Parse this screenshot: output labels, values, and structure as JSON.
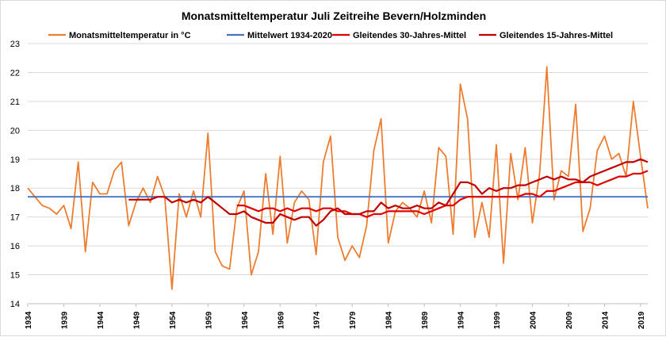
{
  "chart_data": {
    "type": "line",
    "title": "Monatsmitteltemperatur Juli Zeitreihe Bevern/Holzminden",
    "xlabel": "",
    "ylabel": "",
    "ylim": [
      14,
      23
    ],
    "yticks": [
      14,
      15,
      16,
      17,
      18,
      19,
      20,
      21,
      22,
      23
    ],
    "xlim": [
      1934,
      2020
    ],
    "xticks": [
      1934,
      1939,
      1944,
      1949,
      1954,
      1959,
      1964,
      1969,
      1974,
      1979,
      1984,
      1989,
      1994,
      1999,
      2004,
      2009,
      2014,
      2019
    ],
    "legend_position": "top",
    "series": [
      {
        "name": "Monatsmitteltemperatur in °C",
        "color": "#ED7D31",
        "width": 1.8,
        "start": 1934,
        "values": [
          18.0,
          17.7,
          17.4,
          17.3,
          17.1,
          17.4,
          16.6,
          18.9,
          15.8,
          18.2,
          17.8,
          17.8,
          18.6,
          18.9,
          16.7,
          17.5,
          18.0,
          17.5,
          18.4,
          17.7,
          14.5,
          17.8,
          17.0,
          17.9,
          17.0,
          19.9,
          15.8,
          15.3,
          15.2,
          17.3,
          17.9,
          15.0,
          15.8,
          18.5,
          16.4,
          19.1,
          16.1,
          17.5,
          17.9,
          17.6,
          15.7,
          18.9,
          19.8,
          16.3,
          15.5,
          16.0,
          15.6,
          16.7,
          19.3,
          20.4,
          16.1,
          17.2,
          17.5,
          17.3,
          17.0,
          17.9,
          16.8,
          19.4,
          19.1,
          16.4,
          21.6,
          20.4,
          16.3,
          17.5,
          16.3,
          19.5,
          15.4,
          19.2,
          17.6,
          19.4,
          16.8,
          18.5,
          22.2,
          17.6,
          18.6,
          18.4,
          20.9,
          16.5,
          17.3,
          19.3,
          19.8,
          19.0,
          19.2,
          18.4,
          21.0,
          19.1,
          17.3
        ]
      },
      {
        "name": "Mittelwert 1934-2020",
        "color": "#4472C4",
        "width": 1.8,
        "start": 1934,
        "values": [
          17.7,
          17.7
        ]
      },
      {
        "name": "Gleitendes 30-Jahres-Mittel",
        "color": "#E00000",
        "width": 2.2,
        "start": 1963,
        "values": [
          17.4,
          17.4,
          17.3,
          17.2,
          17.3,
          17.3,
          17.2,
          17.3,
          17.2,
          17.3,
          17.3,
          17.2,
          17.3,
          17.3,
          17.2,
          17.2,
          17.1,
          17.1,
          17.0,
          17.1,
          17.1,
          17.2,
          17.2,
          17.2,
          17.2,
          17.2,
          17.1,
          17.2,
          17.3,
          17.4,
          17.4,
          17.6,
          17.7,
          17.7,
          17.7,
          17.7,
          17.7,
          17.7,
          17.7,
          17.7,
          17.8,
          17.8,
          17.7,
          17.9,
          17.9,
          18.0,
          18.1,
          18.2,
          18.2,
          18.2,
          18.1,
          18.2,
          18.3,
          18.4,
          18.4,
          18.5,
          18.5,
          18.6
        ]
      },
      {
        "name": "Gleitendes 15-Jahres-Mittel",
        "color": "#C00000",
        "width": 2.2,
        "start": 1948,
        "values": [
          17.6,
          17.6,
          17.6,
          17.6,
          17.7,
          17.7,
          17.5,
          17.6,
          17.5,
          17.6,
          17.5,
          17.7,
          17.5,
          17.3,
          17.1,
          17.1,
          17.2,
          17.0,
          16.9,
          16.8,
          16.8,
          17.1,
          17.0,
          16.9,
          17.0,
          17.0,
          16.7,
          16.9,
          17.2,
          17.3,
          17.1,
          17.1,
          17.1,
          17.2,
          17.2,
          17.5,
          17.3,
          17.4,
          17.3,
          17.3,
          17.4,
          17.3,
          17.3,
          17.5,
          17.4,
          17.8,
          18.2,
          18.2,
          18.1,
          17.8,
          18.0,
          17.9,
          18.0,
          18.0,
          18.1,
          18.1,
          18.2,
          18.3,
          18.4,
          18.3,
          18.4,
          18.3,
          18.3,
          18.2,
          18.4,
          18.5,
          18.6,
          18.7,
          18.8,
          18.9,
          18.9,
          19.0,
          18.9
        ]
      }
    ]
  }
}
